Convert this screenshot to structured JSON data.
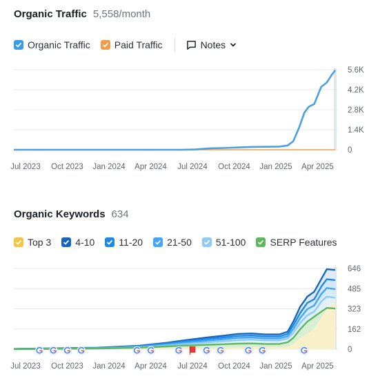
{
  "traffic": {
    "title": "Organic Traffic",
    "value": "5,558/month",
    "legend": [
      {
        "label": "Organic Traffic",
        "color": "#3a9be6"
      },
      {
        "label": "Paid Traffic",
        "color": "#f39a4a"
      }
    ],
    "notes_label": "Notes"
  },
  "keywords": {
    "title": "Organic Keywords",
    "value": "634",
    "legend": [
      {
        "label": "Top 3",
        "color": "#f4c542"
      },
      {
        "label": "4-10",
        "color": "#1565c0"
      },
      {
        "label": "11-20",
        "color": "#1e88e5"
      },
      {
        "label": "21-50",
        "color": "#42a5f5"
      },
      {
        "label": "51-100",
        "color": "#90caf9"
      },
      {
        "label": "SERP Features",
        "color": "#5cb85c"
      }
    ]
  },
  "chart_data": [
    {
      "type": "line",
      "title": "Organic Traffic",
      "x_ticks": [
        "Jul 2023",
        "Oct 2023",
        "Jan 2024",
        "Apr 2024",
        "Jul 2024",
        "Oct 2024",
        "Jan 2025",
        "Apr 2025"
      ],
      "y_ticks": [
        "5.6K",
        "4.2K",
        "2.8K",
        "1.4K",
        "0"
      ],
      "ylim": [
        0,
        5600
      ],
      "x_domain": [
        0,
        23
      ],
      "grid": true,
      "series": [
        {
          "name": "Organic Traffic",
          "color": "#4a9fe0",
          "x": [
            0,
            12,
            13,
            14,
            15,
            16,
            17,
            18,
            19,
            19.6,
            20,
            20.4,
            20.8,
            21.1,
            21.5,
            22,
            22.4,
            22.8,
            23
          ],
          "values": [
            0,
            0,
            20,
            100,
            120,
            160,
            200,
            210,
            220,
            300,
            600,
            1500,
            2600,
            3000,
            3200,
            4400,
            4700,
            5300,
            5558
          ]
        },
        {
          "name": "Paid Traffic",
          "color": "#f39a4a",
          "x": [
            0,
            23
          ],
          "values": [
            0,
            0
          ]
        }
      ]
    },
    {
      "type": "area",
      "title": "Organic Keywords",
      "x_ticks": [
        "Jul 2023",
        "Oct 2023",
        "Jan 2024",
        "Apr 2024",
        "Jul 2024",
        "Oct 2024",
        "Jan 2025",
        "Apr 2025"
      ],
      "y_ticks": [
        "646",
        "485",
        "323",
        "162",
        "0"
      ],
      "ylim": [
        0,
        646
      ],
      "x_domain": [
        0,
        23
      ],
      "grid": true,
      "x": [
        0,
        6,
        9,
        11,
        12,
        13,
        14,
        15,
        16,
        17,
        18,
        19,
        19.6,
        20,
        20.5,
        21,
        21.5,
        22,
        22.4,
        23
      ],
      "series": [
        {
          "name": "Top 3",
          "color": "#f4c542",
          "values": [
            0,
            5,
            8,
            10,
            12,
            12,
            12,
            12,
            14,
            16,
            16,
            16,
            20,
            40,
            90,
            120,
            170,
            250,
            330,
            380
          ]
        },
        {
          "name": "4-10",
          "color": "#1565c0",
          "values": [
            2,
            12,
            28,
            52,
            68,
            82,
            96,
            108,
            122,
            126,
            118,
            118,
            140,
            220,
            340,
            420,
            460,
            560,
            640,
            634
          ]
        },
        {
          "name": "11-20",
          "color": "#1e88e5",
          "values": [
            2,
            10,
            24,
            46,
            60,
            72,
            84,
            94,
            106,
            110,
            102,
            102,
            122,
            190,
            290,
            370,
            400,
            500,
            560,
            552
          ]
        },
        {
          "name": "21-50",
          "color": "#42a5f5",
          "values": [
            1,
            8,
            20,
            38,
            50,
            60,
            70,
            80,
            90,
            94,
            86,
            86,
            104,
            160,
            250,
            320,
            350,
            440,
            490,
            480
          ]
        },
        {
          "name": "51-100",
          "color": "#90caf9",
          "values": [
            1,
            6,
            15,
            30,
            40,
            48,
            56,
            64,
            72,
            76,
            70,
            70,
            86,
            130,
            210,
            270,
            300,
            380,
            420,
            412
          ]
        },
        {
          "name": "SERP Features",
          "color": "#5cb85c",
          "values": [
            0,
            5,
            12,
            22,
            28,
            32,
            36,
            40,
            44,
            46,
            42,
            42,
            55,
            90,
            160,
            220,
            260,
            300,
            330,
            325
          ]
        }
      ],
      "markers": [
        {
          "type": "google",
          "x": 1
        },
        {
          "type": "google",
          "x": 2
        },
        {
          "type": "google",
          "x": 3
        },
        {
          "type": "google",
          "x": 4
        },
        {
          "type": "google",
          "x": 8
        },
        {
          "type": "google",
          "x": 9
        },
        {
          "type": "google",
          "x": 11
        },
        {
          "type": "flag",
          "x": 12
        },
        {
          "type": "google",
          "x": 13
        },
        {
          "type": "google",
          "x": 14
        },
        {
          "type": "google",
          "x": 16
        },
        {
          "type": "google",
          "x": 17
        },
        {
          "type": "google",
          "x": 20
        }
      ]
    }
  ]
}
